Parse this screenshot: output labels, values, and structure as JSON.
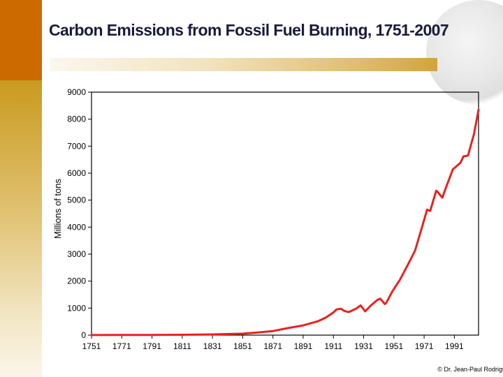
{
  "title": "Carbon Emissions from Fossil Fuel Burning, 1751-2007",
  "credit": "© Dr. Jean-Paul Rodrigu",
  "colors": {
    "series": "#e8221f",
    "axis": "#000000",
    "title": "#1a1a3c",
    "accent_top": "#cc6a00",
    "accent_gold": "#c99a1e"
  },
  "chart_data": {
    "type": "line",
    "title": "Carbon Emissions from Fossil Fuel Burning, 1751-2007",
    "xlabel": "",
    "ylabel": "Millions of tons",
    "xlim": [
      1751,
      2007
    ],
    "ylim": [
      0,
      9000
    ],
    "x_ticks": [
      1751,
      1771,
      1791,
      1811,
      1831,
      1851,
      1871,
      1891,
      1911,
      1931,
      1951,
      1971,
      1991
    ],
    "y_ticks": [
      0,
      1000,
      2000,
      3000,
      4000,
      5000,
      6000,
      7000,
      8000,
      9000
    ],
    "grid": false,
    "legend": "none",
    "series": [
      {
        "x": [
          1751,
          1771,
          1791,
          1811,
          1831,
          1851,
          1861,
          1871,
          1881,
          1891,
          1901,
          1906,
          1911,
          1913,
          1916,
          1918,
          1921,
          1926,
          1929,
          1932,
          1936,
          1940,
          1942,
          1945,
          1946,
          1950,
          1955,
          1960,
          1965,
          1970,
          1973,
          1974,
          1975,
          1979,
          1980,
          1983,
          1985,
          1990,
          1995,
          1997,
          2000,
          2004,
          2007
        ],
        "y": [
          3,
          5,
          8,
          12,
          25,
          55,
          95,
          150,
          260,
          360,
          520,
          650,
          840,
          950,
          980,
          900,
          850,
          980,
          1100,
          880,
          1110,
          1300,
          1350,
          1150,
          1200,
          1620,
          2050,
          2580,
          3130,
          4070,
          4650,
          4620,
          4600,
          5350,
          5300,
          5090,
          5400,
          6140,
          6380,
          6620,
          6650,
          7450,
          8350
        ]
      }
    ]
  }
}
